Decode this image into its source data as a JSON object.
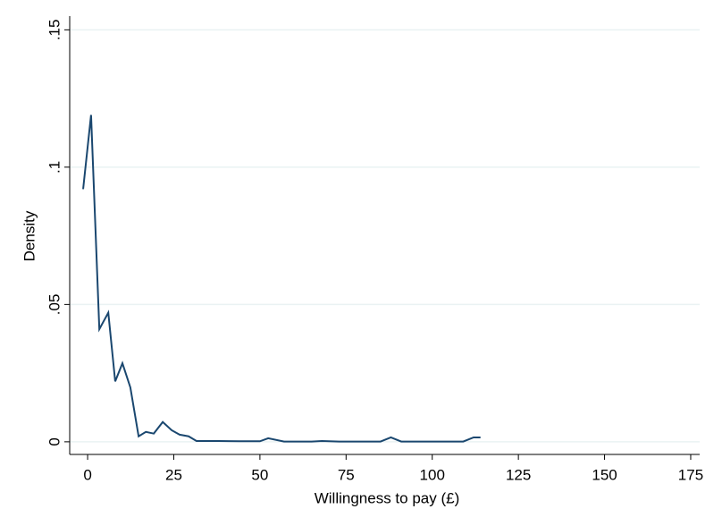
{
  "chart_data": {
    "type": "line",
    "xlabel": "Willingness to pay (£)",
    "ylabel": "Density",
    "x": [
      -1.3,
      1,
      3.4,
      6,
      8,
      10.1,
      12.4,
      14.8,
      16.9,
      19.2,
      21.8,
      24.4,
      26.7,
      29.3,
      31.6,
      38,
      44,
      50,
      52.4,
      57,
      65,
      68,
      73,
      85,
      88,
      91,
      109,
      112,
      114
    ],
    "series": [
      {
        "name": "Density",
        "color": "#1a476f",
        "values": [
          0.092,
          0.119,
          0.041,
          0.047,
          0.022,
          0.0286,
          0.0198,
          0.002,
          0.0036,
          0.003,
          0.0072,
          0.0042,
          0.0026,
          0.002,
          0.0003,
          0.0003,
          0.0002,
          0.0002,
          0.0013,
          0.0001,
          0.0001,
          0.0003,
          0.0001,
          0.0001,
          0.0016,
          0.0001,
          0.0001,
          0.0016,
          0.0016
        ]
      }
    ],
    "xlim": [
      -5.2,
      177.6
    ],
    "ylim": [
      -0.0046,
      0.155
    ],
    "xticks": [
      0,
      25,
      50,
      75,
      100,
      125,
      150,
      175
    ],
    "yticks": [
      0,
      {
        "value": 0.05,
        "label": ".05"
      },
      {
        "value": 0.1,
        "label": ".1"
      },
      {
        "value": 0.15,
        "label": ".15"
      }
    ],
    "grid": true
  }
}
